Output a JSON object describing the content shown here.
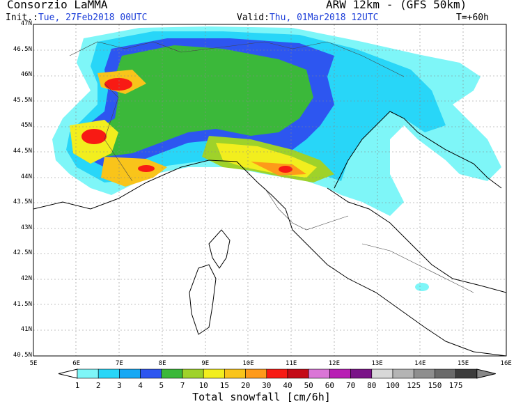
{
  "header": {
    "org": "Consorzio LaMMA",
    "model": "ARW 12km - (GFS 50km)",
    "init_label": "Init.:",
    "init_value": "Tue, 27Feb2018 00UTC",
    "valid_label": "Valid:",
    "valid_value": "Thu, 01Mar2018 12UTC",
    "step": "T=+60h"
  },
  "axes": {
    "lat_labels": [
      "47N",
      "46.5N",
      "46N",
      "45.5N",
      "45N",
      "44.5N",
      "44N",
      "43.5N",
      "43N",
      "42.5N",
      "42N",
      "41.5N",
      "41N",
      "40.5N"
    ],
    "lon_labels": [
      "5E",
      "6E",
      "7E",
      "8E",
      "9E",
      "10E",
      "11E",
      "12E",
      "13E",
      "14E",
      "15E",
      "16E"
    ]
  },
  "legend": {
    "title": "Total snowfall [cm/6h]",
    "levels": [
      "1",
      "2",
      "3",
      "4",
      "5",
      "7",
      "10",
      "15",
      "20",
      "30",
      "40",
      "50",
      "60",
      "70",
      "80",
      "100",
      "125",
      "150",
      "175"
    ],
    "colors": [
      "#7ef6f8",
      "#28d6f8",
      "#16a8f4",
      "#2d56f0",
      "#3bb83a",
      "#9fd22a",
      "#f2ee1e",
      "#f9c41a",
      "#fe9a1a",
      "#f81a14",
      "#c40a16",
      "#da76d6",
      "#b81eb4",
      "#7a1488",
      "#d8d8d8",
      "#b4b4b4",
      "#8e8e8e",
      "#6a6a6a",
      "#3c3c3c"
    ]
  }
}
